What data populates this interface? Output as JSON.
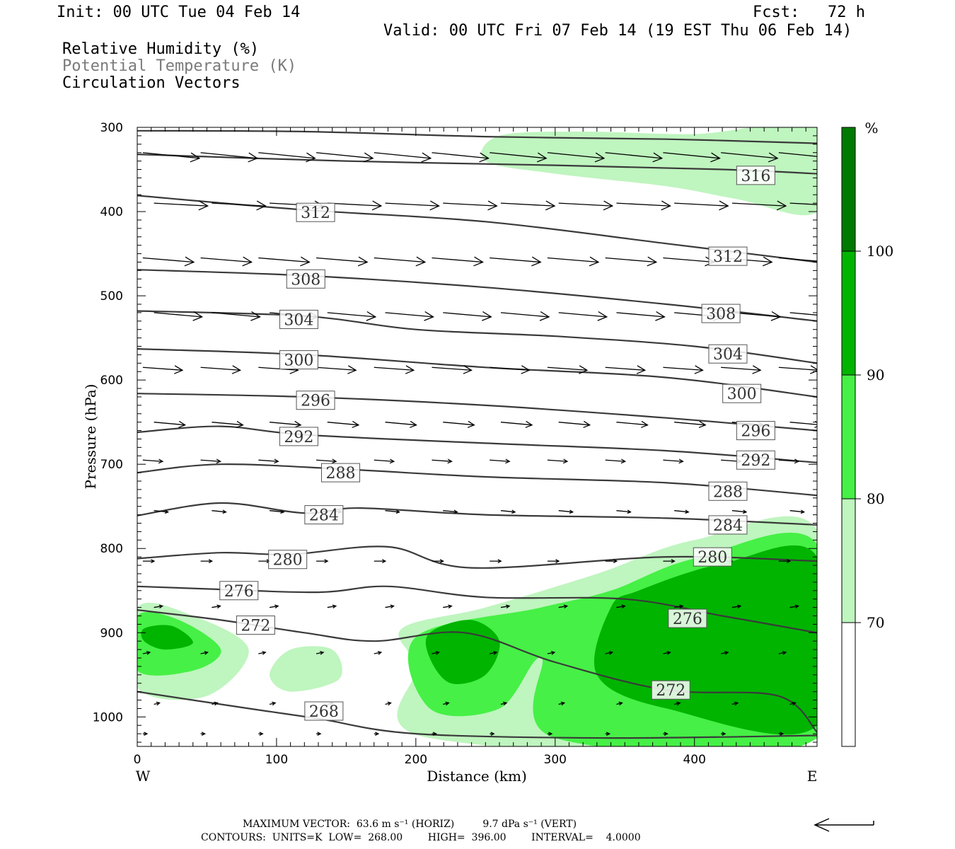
{
  "header": {
    "init": "Init: 00 UTC Tue 04 Feb 14",
    "fcst": "Fcst:   72 h",
    "valid": "Valid: 00 UTC Fri 07 Feb 14 (19 EST Thu 06 Feb 14)"
  },
  "legend": {
    "rh": "Relative Humidity (%)",
    "theta": "Potential Temperature (K)",
    "vectors": "Circulation Vectors"
  },
  "colorbar": {
    "unit": "%",
    "levels": [
      "70",
      "80",
      "90",
      "100"
    ],
    "colors": [
      "#ffffff",
      "#bff5bf",
      "#46f046",
      "#00b400",
      "#007a00"
    ]
  },
  "footer": {
    "line1": "MAXIMUM VECTOR:  63.6 m s⁻¹ (HORIZ)         9.7 dPa s⁻¹ (VERT)",
    "line2": "CONTOURS:  UNITS=K  LOW=  268.00        HIGH=  396.00        INTERVAL=    4.0000"
  },
  "chart_data": {
    "type": "contour",
    "xlabel": "Distance (km)",
    "ylabel": "Pressure (hPa)",
    "xlim": [
      0,
      488
    ],
    "ylim": [
      1035,
      300
    ],
    "x_ticks": [
      0,
      100,
      200,
      300,
      400
    ],
    "y_ticks": [
      300,
      400,
      500,
      600,
      700,
      800,
      900,
      1000
    ],
    "x_end_labels": {
      "left": "W",
      "right": "E"
    },
    "isentropes": [
      {
        "label": "316",
        "points": [
          [
            0,
            304
          ],
          [
            120,
            305
          ],
          [
            250,
            311
          ],
          [
            380,
            314
          ],
          [
            488,
            319
          ]
        ],
        "labels_at": [
          [
            444,
            357
          ]
        ]
      },
      {
        "label": "316b",
        "points": [
          [
            0,
            332
          ],
          [
            150,
            340
          ],
          [
            300,
            345
          ],
          [
            420,
            350
          ],
          [
            488,
            355
          ]
        ],
        "labels_at": []
      },
      {
        "label": "312",
        "points": [
          [
            0,
            381
          ],
          [
            120,
            398
          ],
          [
            250,
            412
          ],
          [
            380,
            438
          ],
          [
            488,
            460
          ]
        ],
        "labels_at": [
          [
            128,
            401
          ],
          [
            424,
            453
          ]
        ]
      },
      {
        "label": "308",
        "points": [
          [
            0,
            469
          ],
          [
            120,
            476
          ],
          [
            250,
            490
          ],
          [
            380,
            510
          ],
          [
            488,
            530
          ]
        ],
        "labels_at": [
          [
            121,
            480
          ],
          [
            419,
            521
          ]
        ]
      },
      {
        "label": "304",
        "points": [
          [
            0,
            518
          ],
          [
            120,
            524
          ],
          [
            200,
            540
          ],
          [
            300,
            548
          ],
          [
            400,
            560
          ],
          [
            488,
            580
          ]
        ],
        "labels_at": [
          [
            116,
            528
          ],
          [
            424,
            569
          ]
        ]
      },
      {
        "label": "300",
        "points": [
          [
            0,
            563
          ],
          [
            120,
            570
          ],
          [
            250,
            585
          ],
          [
            380,
            597
          ],
          [
            488,
            620
          ]
        ],
        "labels_at": [
          [
            116,
            576
          ],
          [
            434,
            616
          ]
        ]
      },
      {
        "label": "296",
        "points": [
          [
            0,
            616
          ],
          [
            120,
            620
          ],
          [
            250,
            630
          ],
          [
            380,
            645
          ],
          [
            488,
            660
          ]
        ],
        "labels_at": [
          [
            128,
            624
          ],
          [
            444,
            660
          ]
        ]
      },
      {
        "label": "292",
        "points": [
          [
            0,
            662
          ],
          [
            60,
            655
          ],
          [
            120,
            665
          ],
          [
            250,
            675
          ],
          [
            380,
            684
          ],
          [
            488,
            698
          ]
        ],
        "labels_at": [
          [
            116,
            667
          ],
          [
            444,
            695
          ]
        ]
      },
      {
        "label": "288",
        "points": [
          [
            0,
            710
          ],
          [
            60,
            700
          ],
          [
            150,
            706
          ],
          [
            250,
            715
          ],
          [
            380,
            722
          ],
          [
            488,
            737
          ]
        ],
        "labels_at": [
          [
            146,
            710
          ],
          [
            424,
            732
          ]
        ]
      },
      {
        "label": "284",
        "points": [
          [
            0,
            761
          ],
          [
            60,
            746
          ],
          [
            120,
            758
          ],
          [
            160,
            752
          ],
          [
            250,
            760
          ],
          [
            380,
            764
          ],
          [
            488,
            772
          ]
        ],
        "labels_at": [
          [
            134,
            760
          ],
          [
            424,
            772
          ]
        ]
      },
      {
        "label": "280",
        "points": [
          [
            0,
            812
          ],
          [
            60,
            805
          ],
          [
            110,
            807
          ],
          [
            180,
            798
          ],
          [
            240,
            823
          ],
          [
            380,
            810
          ],
          [
            488,
            815
          ]
        ],
        "labels_at": [
          [
            108,
            813
          ],
          [
            413,
            810
          ]
        ]
      },
      {
        "label": "276",
        "points": [
          [
            0,
            845
          ],
          [
            50,
            848
          ],
          [
            130,
            852
          ],
          [
            180,
            845
          ],
          [
            250,
            858
          ],
          [
            350,
            860
          ],
          [
            420,
            880
          ],
          [
            488,
            900
          ]
        ],
        "labels_at": [
          [
            73,
            850
          ],
          [
            395,
            883
          ]
        ]
      },
      {
        "label": "272",
        "points": [
          [
            0,
            873
          ],
          [
            60,
            885
          ],
          [
            120,
            900
          ],
          [
            170,
            910
          ],
          [
            235,
            900
          ],
          [
            300,
            935
          ],
          [
            380,
            968
          ],
          [
            460,
            975
          ],
          [
            488,
            1018
          ]
        ],
        "labels_at": [
          [
            85,
            891
          ],
          [
            383,
            968
          ]
        ]
      },
      {
        "label": "268",
        "points": [
          [
            0,
            970
          ],
          [
            80,
            990
          ],
          [
            130,
            1002
          ],
          [
            200,
            1020
          ],
          [
            340,
            1025
          ],
          [
            488,
            1022
          ]
        ],
        "labels_at": [
          [
            134,
            993
          ]
        ]
      }
    ],
    "rh_regions": [
      {
        "level": 80,
        "note": "upper tongue",
        "points": [
          [
            250,
            340
          ],
          [
            260,
            310
          ],
          [
            320,
            305
          ],
          [
            400,
            308
          ],
          [
            488,
            300
          ],
          [
            488,
            400
          ],
          [
            430,
            385
          ],
          [
            380,
            370
          ],
          [
            300,
            355
          ]
        ]
      },
      {
        "level": 80,
        "note": "lower band",
        "points": [
          [
            488,
            778
          ],
          [
            400,
            790
          ],
          [
            330,
            830
          ],
          [
            250,
            870
          ],
          [
            190,
            895
          ],
          [
            200,
            940
          ],
          [
            210,
            1025
          ],
          [
            488,
            1025
          ]
        ]
      },
      {
        "level": 90,
        "note": "lower band",
        "points": [
          [
            488,
            795
          ],
          [
            400,
            812
          ],
          [
            340,
            850
          ],
          [
            290,
            870
          ],
          [
            200,
            905
          ],
          [
            210,
            990
          ],
          [
            260,
            990
          ],
          [
            290,
            930
          ],
          [
            300,
            1025
          ],
          [
            488,
            1025
          ]
        ]
      },
      {
        "level": 100,
        "note": "core",
        "points": [
          [
            488,
            810
          ],
          [
            420,
            818
          ],
          [
            360,
            850
          ],
          [
            340,
            870
          ],
          [
            330,
            950
          ],
          [
            380,
            990
          ],
          [
            488,
            1010
          ]
        ]
      },
      {
        "level": 100,
        "note": "blob 1",
        "points": [
          [
            210,
            900
          ],
          [
            240,
            885
          ],
          [
            260,
            910
          ],
          [
            250,
            950
          ],
          [
            225,
            960
          ],
          [
            210,
            930
          ]
        ]
      },
      {
        "level": 80,
        "note": "west blob",
        "points": [
          [
            0,
            870
          ],
          [
            40,
            880
          ],
          [
            80,
            920
          ],
          [
            50,
            975
          ],
          [
            0,
            965
          ]
        ]
      },
      {
        "level": 90,
        "note": "west blob",
        "points": [
          [
            0,
            880
          ],
          [
            30,
            885
          ],
          [
            60,
            920
          ],
          [
            40,
            945
          ],
          [
            0,
            945
          ]
        ]
      },
      {
        "level": 100,
        "note": "west blob",
        "points": [
          [
            5,
            895
          ],
          [
            25,
            892
          ],
          [
            40,
            912
          ],
          [
            20,
            920
          ],
          [
            5,
            910
          ]
        ]
      },
      {
        "level": 80,
        "note": "small blob",
        "points": [
          [
            95,
            950
          ],
          [
            110,
            920
          ],
          [
            140,
            920
          ],
          [
            145,
            955
          ],
          [
            110,
            970
          ]
        ]
      }
    ],
    "vector_rows": [
      {
        "p": 330,
        "count": 12,
        "u": 40,
        "w": -4
      },
      {
        "p": 390,
        "count": 12,
        "u": 38,
        "w": -2
      },
      {
        "p": 455,
        "count": 12,
        "u": 36,
        "w": -3
      },
      {
        "p": 520,
        "count": 12,
        "u": 34,
        "w": -3
      },
      {
        "p": 585,
        "count": 12,
        "u": 28,
        "w": -2
      },
      {
        "p": 650,
        "count": 12,
        "u": 22,
        "w": -2
      },
      {
        "p": 695,
        "count": 12,
        "u": 14,
        "w": -1
      },
      {
        "p": 755,
        "count": 12,
        "u": 10,
        "w": -1
      },
      {
        "p": 815,
        "count": 12,
        "u": 8,
        "w": 0
      },
      {
        "p": 870,
        "count": 12,
        "u": 6,
        "w": 1
      },
      {
        "p": 925,
        "count": 12,
        "u": 5,
        "w": 1
      },
      {
        "p": 985,
        "count": 12,
        "u": 4,
        "w": 1
      },
      {
        "p": 1020,
        "count": 12,
        "u": 3,
        "w": 0
      }
    ]
  }
}
